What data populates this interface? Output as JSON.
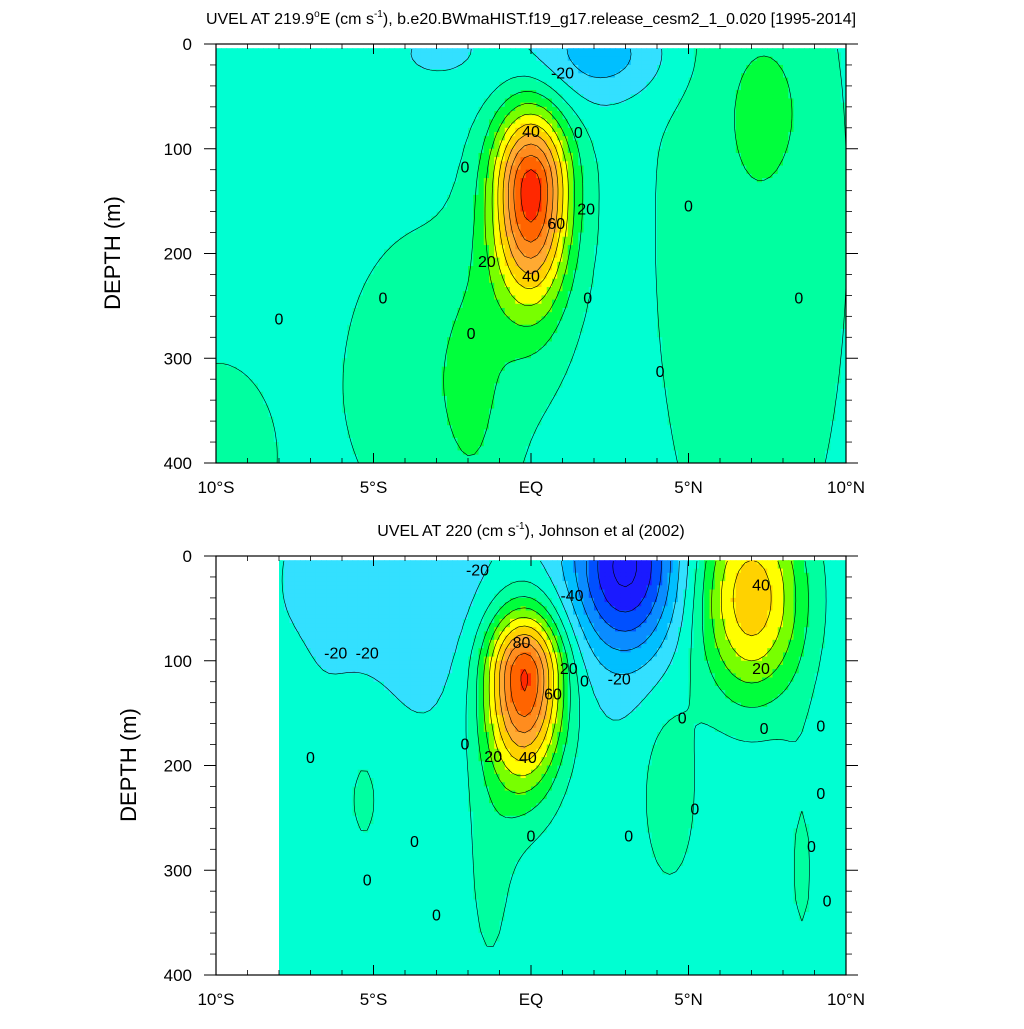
{
  "colors": {
    "levels": [
      -60,
      -50,
      -40,
      -30,
      -20,
      -10,
      0,
      10,
      20,
      30,
      40,
      50,
      60,
      70,
      80,
      90
    ],
    "palette": [
      "#1a1aff",
      "#0050ff",
      "#0a8cff",
      "#00bfff",
      "#33e0ff",
      "#00ffd2",
      "#00ffa0",
      "#00ff3c",
      "#78ff00",
      "#ffff00",
      "#ffd200",
      "#ffaa32",
      "#ff8c1e",
      "#ff6400",
      "#ff2800",
      "#e60000"
    ]
  },
  "chart_data": [
    {
      "type": "contour",
      "title": "UVEL AT 219.9°E (cm s⁻¹), b.e20.BWmaHIST.f19_g17.release_cesm2_1_0.020 [1995-2014]",
      "title_parts": {
        "a": "UVEL AT 219.9",
        "b": "o",
        "c": "E (cm s",
        "d": "-1",
        "e": "), b.e20.BWmaHIST.f19_g17.release_cesm2_1_0.020 [1995-2014]"
      },
      "ylabel": "DEPTH (m)",
      "xlim": [
        -10,
        10
      ],
      "ylim": [
        400,
        0
      ],
      "xticks": [
        {
          "v": -10,
          "label": "10°S"
        },
        {
          "v": -5,
          "label": "5°S"
        },
        {
          "v": 0,
          "label": "EQ"
        },
        {
          "v": 5,
          "label": "5°N"
        },
        {
          "v": 10,
          "label": "10°N"
        }
      ],
      "yticks": [
        0,
        100,
        200,
        300,
        400
      ],
      "contour_interval": 10,
      "data_lat_range": [
        -10,
        10
      ],
      "data_depth_range": [
        5,
        400
      ],
      "features": [
        {
          "kind": "background",
          "value": -5
        },
        {
          "kind": "jet",
          "name": "Equatorial Undercurrent core",
          "lat": 0.0,
          "depth": 140,
          "peak": 90,
          "lat_sigma": 0.85,
          "depth_above": 55,
          "depth_below": 75
        },
        {
          "kind": "blob",
          "lat": -3.0,
          "depth": 320,
          "amp": 12,
          "lat_sigma": 2.2,
          "depth_sigma": 110
        },
        {
          "kind": "blob",
          "lat": -10.0,
          "depth": 400,
          "amp": 10,
          "lat_sigma": 1.5,
          "depth_sigma": 80
        },
        {
          "kind": "blob",
          "lat": -1.8,
          "depth": 330,
          "amp": 8,
          "lat_sigma": 0.7,
          "depth_sigma": 100
        },
        {
          "kind": "blob",
          "lat": 7.0,
          "depth": 170,
          "amp": 13,
          "lat_sigma": 2.2,
          "depth_sigma": 260
        },
        {
          "kind": "blob",
          "lat": 7.5,
          "depth": 60,
          "amp": 8,
          "lat_sigma": 0.8,
          "depth_sigma": 45
        },
        {
          "kind": "blob",
          "lat": 1.5,
          "depth": 10,
          "amp": -14,
          "lat_sigma": 1.5,
          "depth_sigma": 35
        },
        {
          "kind": "blob",
          "lat": 3.0,
          "depth": 10,
          "amp": -10,
          "lat_sigma": 1.3,
          "depth_sigma": 30
        },
        {
          "kind": "blob",
          "lat": -3.0,
          "depth": 10,
          "amp": -6,
          "lat_sigma": 1.5,
          "depth_sigma": 30
        }
      ],
      "contour_labels": [
        {
          "text": "-20",
          "lat": 1.0,
          "depth": 28
        },
        {
          "text": "0",
          "lat": 1.5,
          "depth": 85
        },
        {
          "text": "0",
          "lat": -2.1,
          "depth": 118
        },
        {
          "text": "40",
          "lat": 0.0,
          "depth": 84
        },
        {
          "text": "20",
          "lat": 1.75,
          "depth": 158
        },
        {
          "text": "60",
          "lat": 0.8,
          "depth": 172
        },
        {
          "text": "20",
          "lat": -1.4,
          "depth": 208
        },
        {
          "text": "40",
          "lat": 0.0,
          "depth": 222
        },
        {
          "text": "0",
          "lat": 5.0,
          "depth": 155
        },
        {
          "text": "0",
          "lat": -8.0,
          "depth": 263
        },
        {
          "text": "0",
          "lat": -4.7,
          "depth": 243
        },
        {
          "text": "0",
          "lat": 1.8,
          "depth": 243
        },
        {
          "text": "0",
          "lat": 8.5,
          "depth": 243
        },
        {
          "text": "0",
          "lat": -1.9,
          "depth": 277
        },
        {
          "text": "0",
          "lat": 4.1,
          "depth": 313
        }
      ]
    },
    {
      "type": "contour",
      "title": "UVEL AT 220 (cm s⁻¹), Johnson et al (2002)",
      "title_parts": {
        "a": "UVEL AT 220 (cm s",
        "d": "-1",
        "e": "), Johnson et al (2002)"
      },
      "ylabel": "DEPTH (m)",
      "xlim": [
        -10,
        10
      ],
      "ylim": [
        400,
        0
      ],
      "xticks": [
        {
          "v": -10,
          "label": "10°S"
        },
        {
          "v": -5,
          "label": "5°S"
        },
        {
          "v": 0,
          "label": "EQ"
        },
        {
          "v": 5,
          "label": "5°N"
        },
        {
          "v": 10,
          "label": "10°N"
        }
      ],
      "yticks": [
        0,
        100,
        200,
        300,
        400
      ],
      "contour_interval": 10,
      "data_lat_range": [
        -8.0,
        10
      ],
      "data_depth_range": [
        5,
        400
      ],
      "features": [
        {
          "kind": "background",
          "value": -8
        },
        {
          "kind": "jet",
          "name": "Equatorial Undercurrent core",
          "lat": -0.2,
          "depth": 115,
          "peak": 90,
          "lat_sigma": 0.85,
          "depth_above": 45,
          "depth_below": 70
        },
        {
          "kind": "blob",
          "lat": 3.0,
          "depth": 10,
          "amp": -55,
          "lat_sigma": 1.2,
          "depth_sigma": 60
        },
        {
          "kind": "blob",
          "lat": -4.0,
          "depth": 30,
          "amp": -10,
          "lat_sigma": 2.2,
          "depth_sigma": 70
        },
        {
          "kind": "blob",
          "lat": 7.0,
          "depth": 40,
          "amp": 55,
          "lat_sigma": 1.2,
          "depth_sigma": 70
        },
        {
          "kind": "blob",
          "lat": 4.4,
          "depth": 230,
          "amp": 14,
          "lat_sigma": 0.7,
          "depth_sigma": 70
        },
        {
          "kind": "blob",
          "lat": -1.3,
          "depth": 300,
          "amp": 10,
          "lat_sigma": 0.7,
          "depth_sigma": 110
        },
        {
          "kind": "blob",
          "lat": -5.3,
          "depth": 230,
          "amp": 9,
          "lat_sigma": 0.7,
          "depth_sigma": 70
        },
        {
          "kind": "blob",
          "lat": -7.5,
          "depth": 260,
          "amp": 8,
          "lat_sigma": 0.5,
          "depth_sigma": 80
        },
        {
          "kind": "blob",
          "lat": 8.6,
          "depth": 300,
          "amp": 9,
          "lat_sigma": 0.5,
          "depth_sigma": 100
        }
      ],
      "contour_labels": [
        {
          "text": "-20",
          "lat": -1.7,
          "depth": 14
        },
        {
          "text": "-40",
          "lat": 1.3,
          "depth": 38
        },
        {
          "text": "-20",
          "lat": -6.2,
          "depth": 93
        },
        {
          "text": "-20",
          "lat": -5.2,
          "depth": 93
        },
        {
          "text": "80",
          "lat": -0.3,
          "depth": 83
        },
        {
          "text": "20",
          "lat": 1.2,
          "depth": 108
        },
        {
          "text": "60",
          "lat": 0.7,
          "depth": 132
        },
        {
          "text": "0",
          "lat": 1.7,
          "depth": 120
        },
        {
          "text": "-20",
          "lat": 2.8,
          "depth": 118
        },
        {
          "text": "40",
          "lat": 7.3,
          "depth": 28
        },
        {
          "text": "20",
          "lat": 7.3,
          "depth": 108
        },
        {
          "text": "0",
          "lat": 4.8,
          "depth": 155
        },
        {
          "text": "0",
          "lat": -7.0,
          "depth": 193
        },
        {
          "text": "0",
          "lat": -2.1,
          "depth": 180
        },
        {
          "text": "20",
          "lat": -1.2,
          "depth": 192
        },
        {
          "text": "40",
          "lat": -0.1,
          "depth": 193
        },
        {
          "text": "0",
          "lat": 7.4,
          "depth": 165
        },
        {
          "text": "0",
          "lat": 9.2,
          "depth": 163
        },
        {
          "text": "0",
          "lat": 0.0,
          "depth": 268
        },
        {
          "text": "0",
          "lat": 3.1,
          "depth": 268
        },
        {
          "text": "0",
          "lat": 5.2,
          "depth": 242
        },
        {
          "text": "0",
          "lat": 9.2,
          "depth": 227
        },
        {
          "text": "0",
          "lat": -3.7,
          "depth": 273
        },
        {
          "text": "0",
          "lat": 8.9,
          "depth": 278
        },
        {
          "text": "0",
          "lat": -5.2,
          "depth": 310
        },
        {
          "text": "0",
          "lat": -3.0,
          "depth": 343
        },
        {
          "text": "0",
          "lat": 9.4,
          "depth": 330
        }
      ]
    }
  ]
}
